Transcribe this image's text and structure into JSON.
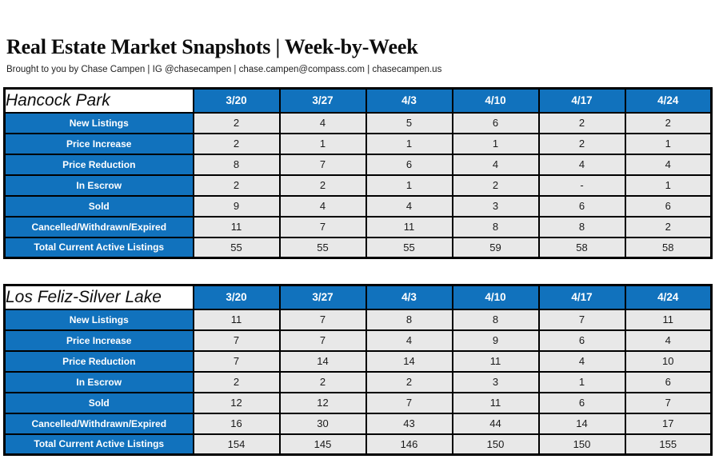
{
  "page": {
    "title": "Real Estate Market Snapshots | Week-by-Week",
    "subtitle": "Brought to you by Chase Campen | IG @chasecampen | chase.campen@compass.com | chasecampen.us"
  },
  "colors": {
    "header_blue": "#1172bd",
    "cell_gray": "#e8e8e8",
    "border_black": "#000000",
    "header_text_white": "#ffffff"
  },
  "week_columns": [
    "3/20",
    "3/27",
    "4/3",
    "4/10",
    "4/17",
    "4/24"
  ],
  "tables": [
    {
      "name": "Hancock Park",
      "rows": [
        {
          "label": "New Listings",
          "values": [
            "2",
            "4",
            "5",
            "6",
            "2",
            "2"
          ]
        },
        {
          "label": "Price Increase",
          "values": [
            "2",
            "1",
            "1",
            "1",
            "2",
            "1"
          ]
        },
        {
          "label": "Price Reduction",
          "values": [
            "8",
            "7",
            "6",
            "4",
            "4",
            "4"
          ]
        },
        {
          "label": "In Escrow",
          "values": [
            "2",
            "2",
            "1",
            "2",
            "-",
            "1"
          ]
        },
        {
          "label": "Sold",
          "values": [
            "9",
            "4",
            "4",
            "3",
            "6",
            "6"
          ]
        },
        {
          "label": "Cancelled/Withdrawn/Expired",
          "values": [
            "11",
            "7",
            "11",
            "8",
            "8",
            "2"
          ]
        },
        {
          "label": "Total Current Active Listings",
          "values": [
            "55",
            "55",
            "55",
            "59",
            "58",
            "58"
          ]
        }
      ]
    },
    {
      "name": "Los Feliz-Silver Lake",
      "rows": [
        {
          "label": "New Listings",
          "values": [
            "11",
            "7",
            "8",
            "8",
            "7",
            "11"
          ]
        },
        {
          "label": "Price Increase",
          "values": [
            "7",
            "7",
            "4",
            "9",
            "6",
            "4"
          ]
        },
        {
          "label": "Price Reduction",
          "values": [
            "7",
            "14",
            "14",
            "11",
            "4",
            "10"
          ]
        },
        {
          "label": "In Escrow",
          "values": [
            "2",
            "2",
            "2",
            "3",
            "1",
            "6"
          ]
        },
        {
          "label": "Sold",
          "values": [
            "12",
            "12",
            "7",
            "11",
            "6",
            "7"
          ]
        },
        {
          "label": "Cancelled/Withdrawn/Expired",
          "values": [
            "16",
            "30",
            "43",
            "44",
            "14",
            "17"
          ]
        },
        {
          "label": "Total Current Active Listings",
          "values": [
            "154",
            "145",
            "146",
            "150",
            "150",
            "155"
          ]
        }
      ]
    }
  ]
}
